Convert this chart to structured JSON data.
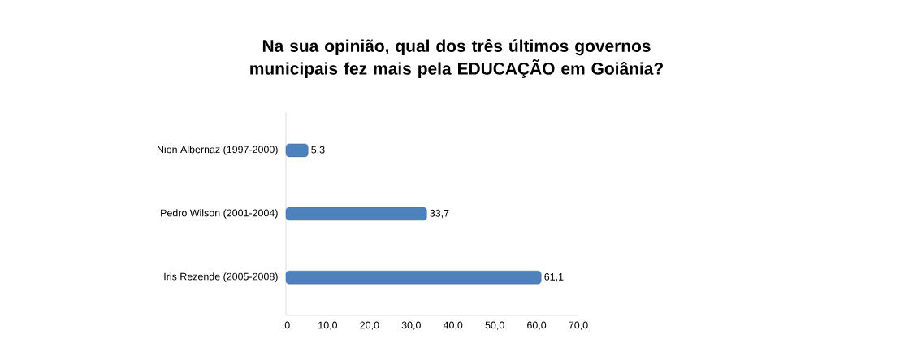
{
  "chart_data": {
    "type": "bar",
    "orientation": "horizontal",
    "title": "Na sua opinião, qual dos três últimos governos municipais fez mais pela EDUCAÇÃO em Goiânia?",
    "categories": [
      "Nion Albernaz (1997-2000)",
      "Pedro Wilson (2001-2004)",
      "Iris Rezende (2005-2008)"
    ],
    "values": [
      5.3,
      33.7,
      61.1
    ],
    "value_labels": [
      "5,3",
      "33,7",
      "61,1"
    ],
    "color": "#4f81bd",
    "xlim": [
      0,
      70
    ],
    "xticks": [
      {
        "value": 0,
        "label": ",0"
      },
      {
        "value": 10,
        "label": "10,0"
      },
      {
        "value": 20,
        "label": "20,0"
      },
      {
        "value": 30,
        "label": "30,0"
      },
      {
        "value": 40,
        "label": "40,0"
      },
      {
        "value": 50,
        "label": "50,0"
      },
      {
        "value": 60,
        "label": "60,0"
      },
      {
        "value": 70,
        "label": "70,0"
      }
    ],
    "grid": false
  }
}
